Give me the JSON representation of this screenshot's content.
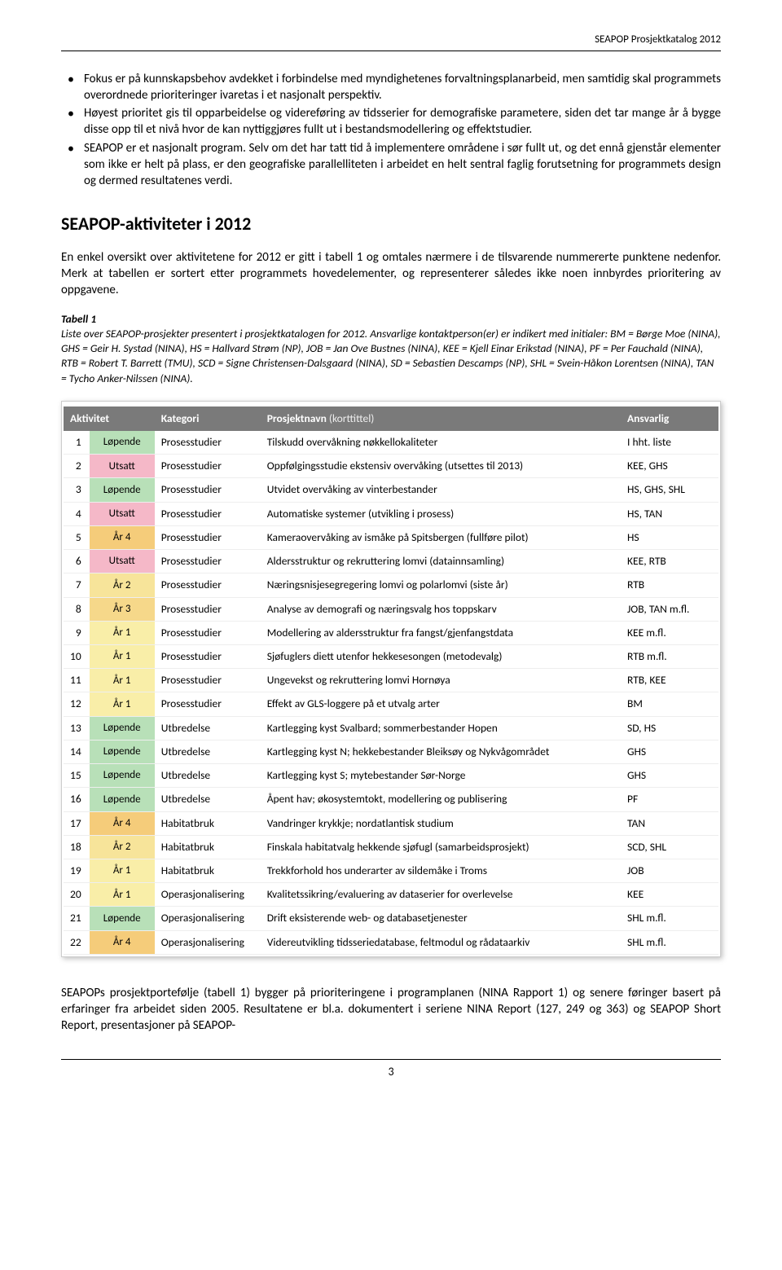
{
  "header": "SEAPOP Prosjektkatalog 2012",
  "bullets": [
    "Fokus er på kunnskapsbehov avdekket i forbindelse med myndighetenes forvaltningsplanarbeid, men samtidig skal programmets overordnede prioriteringer ivaretas i et nasjonalt perspektiv.",
    "Høyest prioritet gis til opparbeidelse og videreføring av tidsserier for demografiske parametere, siden det tar mange år å bygge disse opp til et nivå hvor de kan nyttiggjøres fullt ut i bestandsmodellering og effektstudier.",
    "SEAPOP er et nasjonalt program. Selv om det har tatt tid å implementere områdene i sør fullt ut, og det ennå gjenstår elementer som ikke er helt på plass, er den geografiske parallelliteten i arbeidet en helt sentral faglig forutsetning for programmets design og dermed resultatenes verdi."
  ],
  "heading": "SEAPOP-aktiviteter i 2012",
  "intro": "En enkel oversikt over aktivitetene for 2012 er gitt i tabell 1 og omtales nærmere i de tilsvarende nummererte punktene nedenfor. Merk at tabellen er sortert etter programmets hovedelementer, og representerer således ikke noen innbyrdes prioritering av oppgavene.",
  "caption": {
    "title": "Tabell 1",
    "body": "Liste over SEAPOP-prosjekter presentert i prosjektkatalogen for 2012. Ansvarlige kontaktperson(er) er indikert med initialer: BM = Børge Moe (NINA), GHS = Geir H. Systad (NINA), HS = Hallvard Strøm (NP), JOB = Jan Ove Bustnes (NINA), KEE = Kjell Einar Erikstad (NINA), PF = Per Fauchald (NINA), RTB = Robert T. Barrett (TMU), SCD = Signe Christensen-Dalsgaard (NINA), SD = Sebastien Descamps (NP), SHL = Svein-Håkon Lorentsen (NINA), TAN = Tycho Anker-Nilssen (NINA)."
  },
  "table": {
    "headers": {
      "aktivitet": "Aktivitet",
      "kategori": "Kategori",
      "navn": "Prosjektnavn",
      "navn_sub": "(korttittel)",
      "ansvarlig": "Ansvarlig"
    },
    "rows": [
      {
        "n": "1",
        "kat": "Løpende",
        "kat_bg": "#b8e0b8",
        "cat": "Prosesstudier",
        "navn": "Tilskudd overvåkning nøkkellokaliteter",
        "ans": "I hht. liste"
      },
      {
        "n": "2",
        "kat": "Utsatt",
        "kat_bg": "#f5b8c8",
        "cat": "Prosesstudier",
        "navn": "Oppfølgingsstudie ekstensiv overvåking (utsettes til 2013)",
        "ans": "KEE, GHS"
      },
      {
        "n": "3",
        "kat": "Løpende",
        "kat_bg": "#b8e0b8",
        "cat": "Prosesstudier",
        "navn": "Utvidet overvåking av vinterbestander",
        "ans": "HS, GHS, SHL"
      },
      {
        "n": "4",
        "kat": "Utsatt",
        "kat_bg": "#f5b8c8",
        "cat": "Prosesstudier",
        "navn": "Automatiske systemer (utvikling i prosess)",
        "ans": "HS, TAN"
      },
      {
        "n": "5",
        "kat": "År 4",
        "kat_bg": "#f5cc7a",
        "cat": "Prosesstudier",
        "navn": "Kameraovervåking av ismåke på Spitsbergen (fullføre pilot)",
        "ans": "HS"
      },
      {
        "n": "6",
        "kat": "Utsatt",
        "kat_bg": "#f5b8c8",
        "cat": "Prosesstudier",
        "navn": "Aldersstruktur og rekruttering lomvi (datainnsamling)",
        "ans": "KEE, RTB"
      },
      {
        "n": "7",
        "kat": "År 2",
        "kat_bg": "#f7e49a",
        "cat": "Prosesstudier",
        "navn": "Næringsnisjesegregering lomvi og polarlomvi (siste år)",
        "ans": "RTB"
      },
      {
        "n": "8",
        "kat": "År 3",
        "kat_bg": "#f6d88a",
        "cat": "Prosesstudier",
        "navn": "Analyse av demografi og næringsvalg hos toppskarv",
        "ans": "JOB, TAN m.fl."
      },
      {
        "n": "9",
        "kat": "År 1",
        "kat_bg": "#f9eea8",
        "cat": "Prosesstudier",
        "navn": "Modellering av aldersstruktur fra fangst/gjenfangstdata",
        "ans": "KEE m.fl."
      },
      {
        "n": "10",
        "kat": "År 1",
        "kat_bg": "#f9eea8",
        "cat": "Prosesstudier",
        "navn": "Sjøfuglers diett utenfor hekkesesongen (metodevalg)",
        "ans": "RTB m.fl."
      },
      {
        "n": "11",
        "kat": "År 1",
        "kat_bg": "#f9eea8",
        "cat": "Prosesstudier",
        "navn": "Ungevekst og rekruttering lomvi Hornøya",
        "ans": "RTB, KEE"
      },
      {
        "n": "12",
        "kat": "År 1",
        "kat_bg": "#f9eea8",
        "cat": "Prosesstudier",
        "navn": "Effekt av GLS-loggere på et utvalg arter",
        "ans": "BM"
      },
      {
        "n": "13",
        "kat": "Løpende",
        "kat_bg": "#b8e0b8",
        "cat": "Utbredelse",
        "navn": "Kartlegging kyst Svalbard; sommerbestander Hopen",
        "ans": "SD, HS"
      },
      {
        "n": "14",
        "kat": "Løpende",
        "kat_bg": "#b8e0b8",
        "cat": "Utbredelse",
        "navn": "Kartlegging kyst N; hekkebestander Bleiksøy og Nykvågområdet",
        "ans": "GHS"
      },
      {
        "n": "15",
        "kat": "Løpende",
        "kat_bg": "#b8e0b8",
        "cat": "Utbredelse",
        "navn": "Kartlegging kyst S; mytebestander Sør-Norge",
        "ans": "GHS"
      },
      {
        "n": "16",
        "kat": "Løpende",
        "kat_bg": "#b8e0b8",
        "cat": "Utbredelse",
        "navn": "Åpent hav; økosystemtokt, modellering og publisering",
        "ans": "PF"
      },
      {
        "n": "17",
        "kat": "År 4",
        "kat_bg": "#f5cc7a",
        "cat": "Habitatbruk",
        "navn": "Vandringer krykkje; nordatlantisk studium",
        "ans": "TAN"
      },
      {
        "n": "18",
        "kat": "År 2",
        "kat_bg": "#f7e49a",
        "cat": "Habitatbruk",
        "navn": "Finskala habitatvalg hekkende sjøfugl (samarbeidsprosjekt)",
        "ans": "SCD, SHL"
      },
      {
        "n": "19",
        "kat": "År 1",
        "kat_bg": "#f9eea8",
        "cat": "Habitatbruk",
        "navn": "Trekkforhold hos underarter av sildemåke i Troms",
        "ans": "JOB"
      },
      {
        "n": "20",
        "kat": "År 1",
        "kat_bg": "#f9eea8",
        "cat": "Operasjonalisering",
        "navn": "Kvalitetssikring/evaluering av dataserier for overlevelse",
        "ans": "KEE"
      },
      {
        "n": "21",
        "kat": "Løpende",
        "kat_bg": "#b8e0b8",
        "cat": "Operasjonalisering",
        "navn": "Drift eksisterende web- og databasetjenester",
        "ans": "SHL m.fl."
      },
      {
        "n": "22",
        "kat": "År 4",
        "kat_bg": "#f5cc7a",
        "cat": "Operasjonalisering",
        "navn": "Videreutvikling tidsseriedatabase, feltmodul og rådataarkiv",
        "ans": "SHL m.fl."
      }
    ]
  },
  "outro": "SEAPOPs prosjektportefølje (tabell 1) bygger på prioriteringene i programplanen (NINA Rapport 1) og senere føringer basert på erfaringer fra arbeidet siden 2005. Resultatene er bl.a. dokumentert i seriene NINA Report (127, 249 og 363) og SEAPOP Short Report, presentasjoner på SEAPOP-",
  "page_number": "3"
}
